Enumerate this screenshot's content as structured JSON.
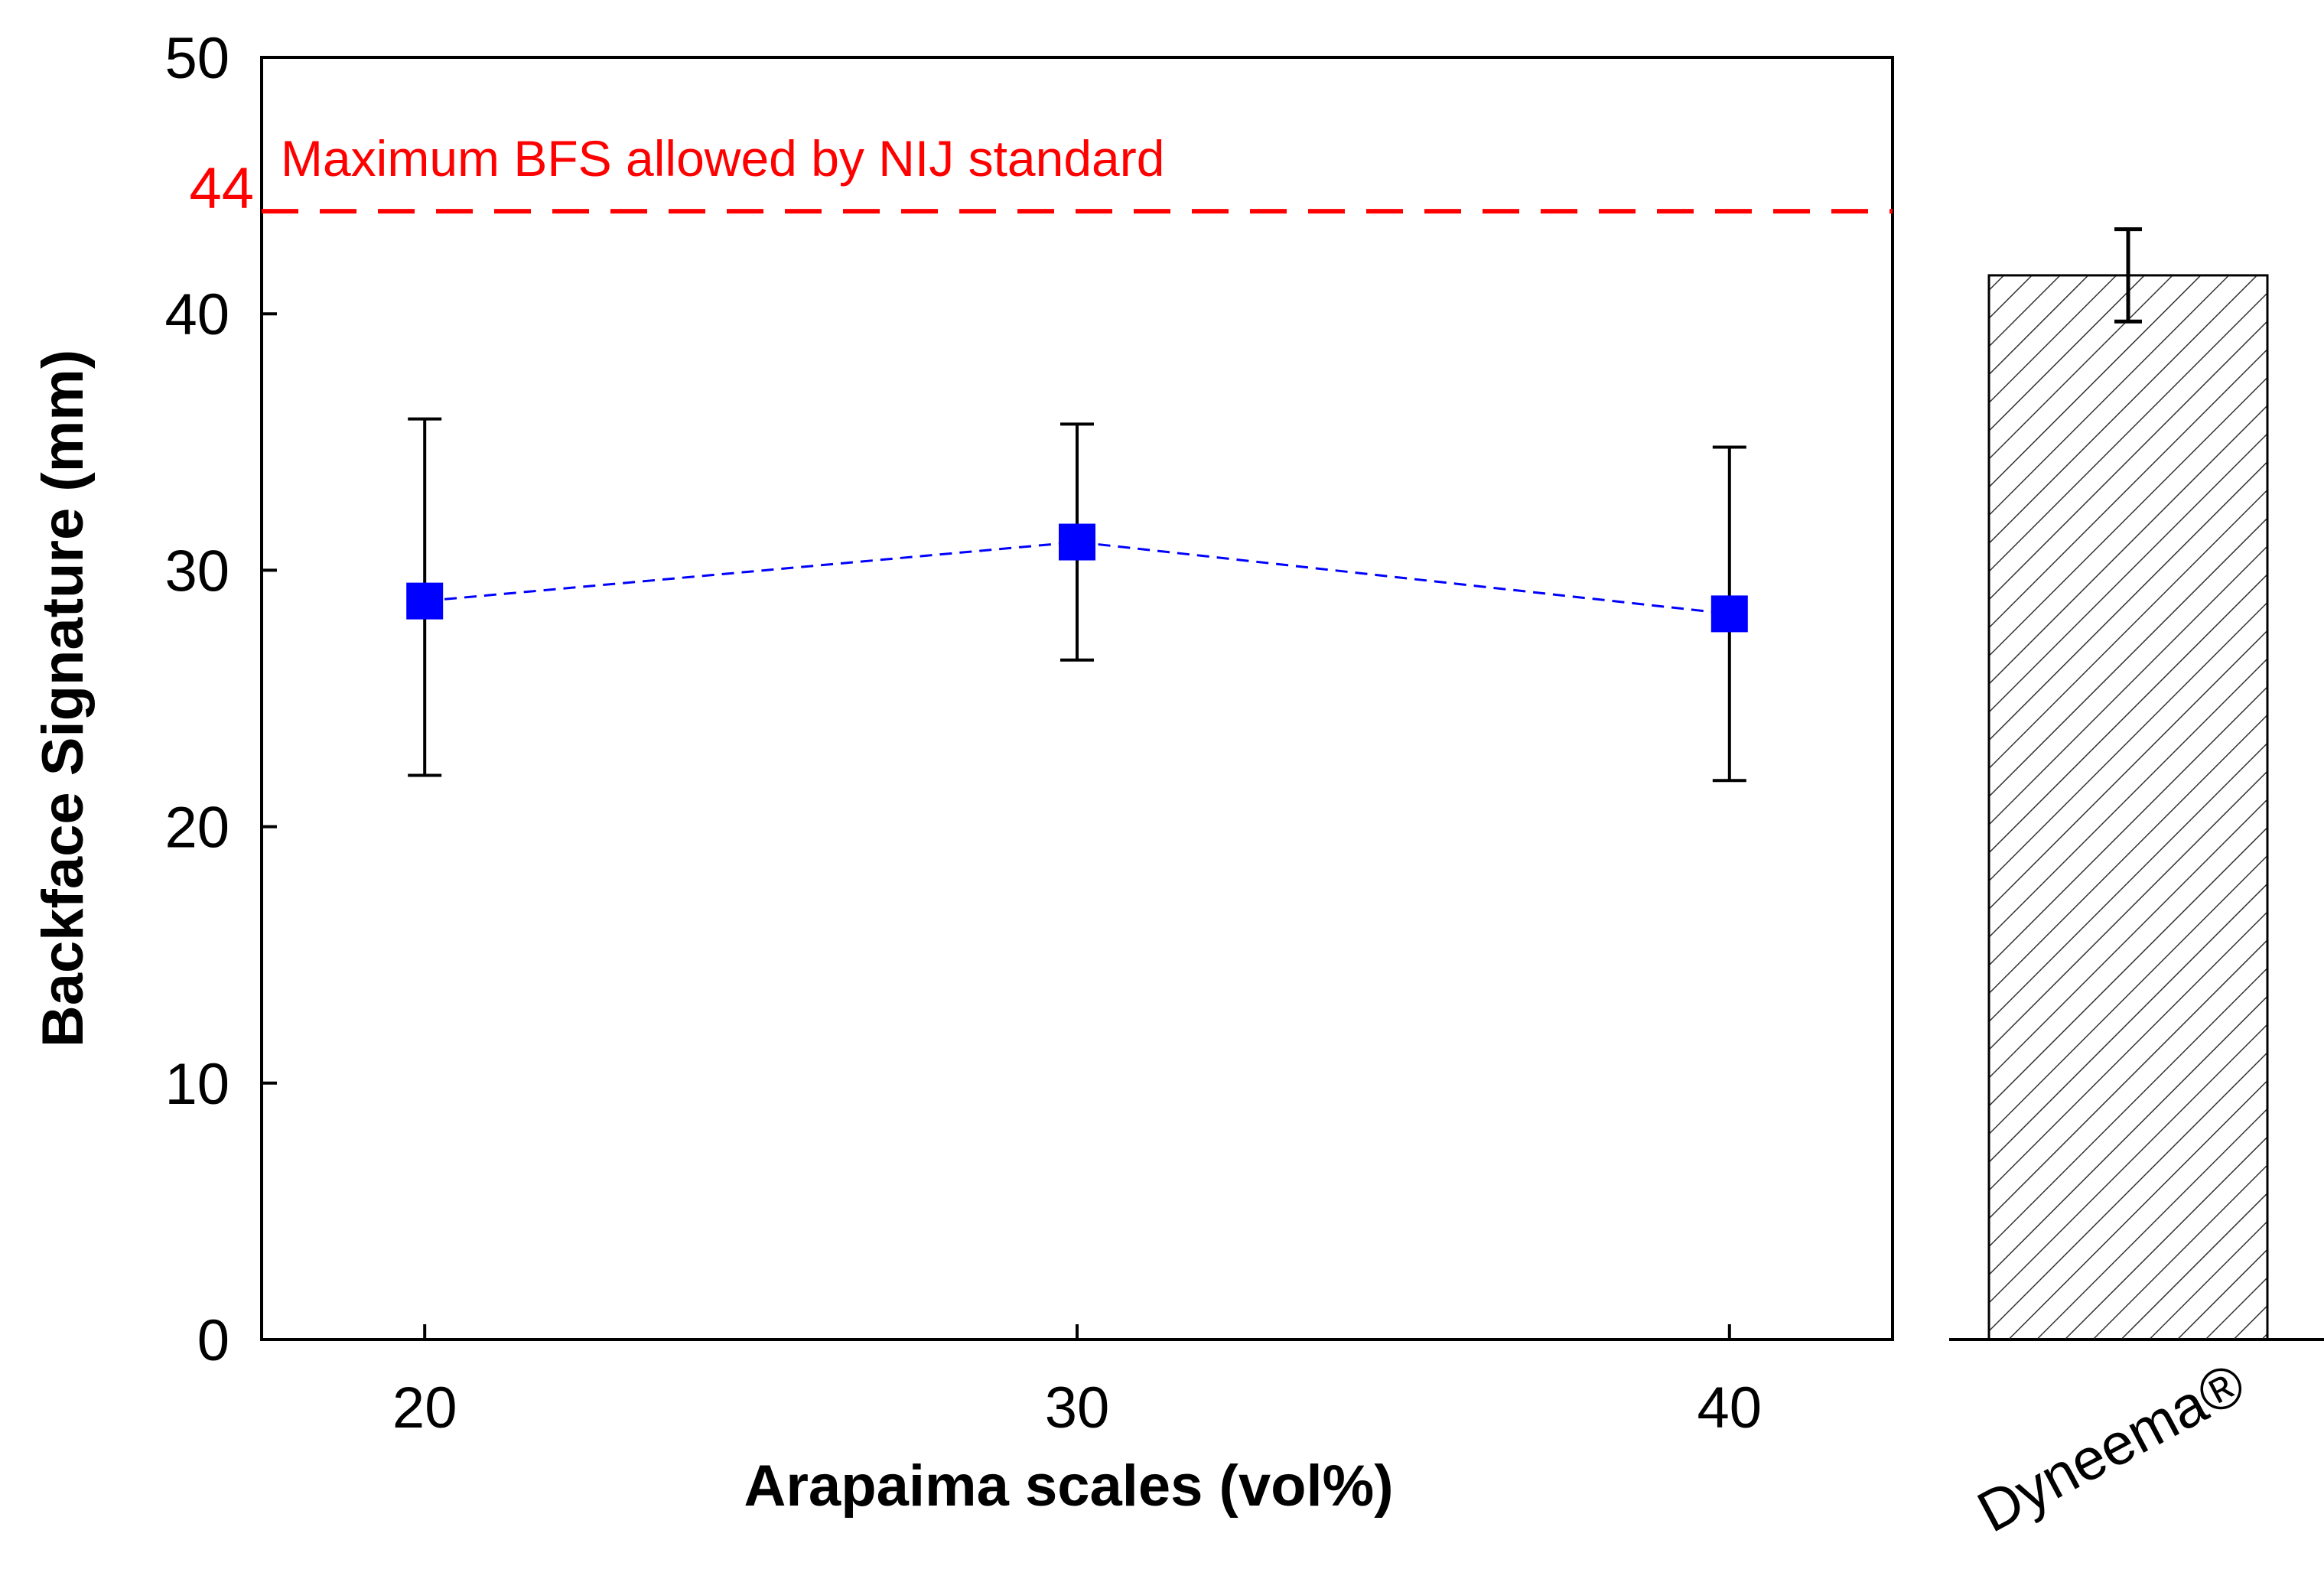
{
  "chart_data": {
    "type": "scatter",
    "xlabel": "Arapaima scales (vol%)",
    "ylabel": "Backface Signature (mm)",
    "ylim": [
      0,
      50
    ],
    "xlim": [
      17.5,
      42.5
    ],
    "y_ticks": [
      "0",
      "10",
      "20",
      "30",
      "40",
      "50"
    ],
    "x_ticks": [
      "20",
      "30",
      "40"
    ],
    "grid": false,
    "series": [
      {
        "name": "Arapaima scales",
        "x": [
          20,
          30,
          40
        ],
        "y": [
          28.8,
          31.1,
          28.3
        ],
        "err_low": [
          22.0,
          26.5,
          21.8
        ],
        "err_high": [
          35.9,
          35.7,
          34.8
        ],
        "color": "#0000ff",
        "line_style": "dashed"
      }
    ],
    "reference_line": {
      "y": 44,
      "label": "Maximum BFS allowed by NIJ standard",
      "tick_label": "44",
      "color": "#ff0000",
      "line_style": "dashed"
    },
    "comparison_bar": {
      "type": "bar",
      "category": "Dyneema®",
      "value": 41.5,
      "err_low": 39.7,
      "err_high": 43.3,
      "fill": "hatched"
    }
  }
}
